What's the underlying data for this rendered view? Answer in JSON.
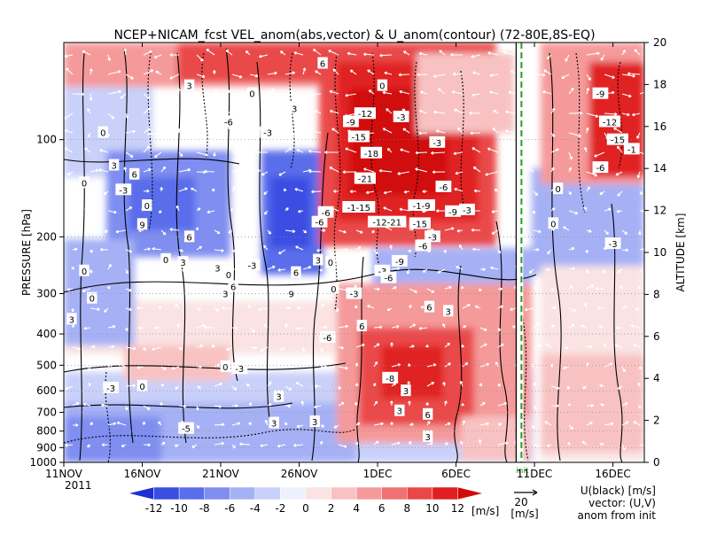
{
  "chart_data": {
    "type": "heatmap",
    "title": "NCEP+NICAM_fcst VEL_anom(abs,vector) & U_anom(contour)    (72-80E,8S-EQ)",
    "xlabel": "",
    "ylabel": "PRESSURE [hPa]",
    "y2label": "ALTITUDE [km]",
    "x_ticks": [
      "11NOV",
      "16NOV",
      "21NOV",
      "26NOV",
      "1DEC",
      "6DEC",
      "11DEC",
      "16DEC"
    ],
    "x_year": "2011",
    "x_range": [
      "2011-11-11",
      "2011-12-18"
    ],
    "init_label": "init",
    "init_date": "2011-12-10",
    "y_ticks": [
      100,
      200,
      300,
      400,
      500,
      600,
      700,
      800,
      900,
      1000
    ],
    "y_range": [
      1000,
      50
    ],
    "y_scale": "log",
    "y2_ticks": [
      0,
      2,
      4,
      6,
      8,
      10,
      12,
      14,
      16,
      18,
      20
    ],
    "y2_range": [
      0,
      20
    ],
    "colorbar": {
      "levels": [
        -12,
        -10,
        -8,
        -6,
        -4,
        -2,
        0,
        2,
        4,
        6,
        8,
        10,
        12
      ],
      "tick_labels": [
        "-12",
        "-10",
        "-8",
        "-6",
        "-4",
        "-2",
        "0",
        "2",
        "4",
        "6",
        "8",
        "10",
        "12"
      ],
      "unit": "[m/s]",
      "colors": [
        "#1e2fd8",
        "#3a4ee2",
        "#5a6dea",
        "#7f8ef0",
        "#a6b1f5",
        "#c9d0f9",
        "#eef0fc",
        "#fbe3e3",
        "#f8c2c2",
        "#f59a9a",
        "#f07272",
        "#ea4848",
        "#e02020",
        "#d10a0a"
      ]
    },
    "vector_reference": {
      "value": "20",
      "unit": "[m/s]"
    },
    "legend_lines": [
      "U(black) [m/s]",
      "vector: (U,V)",
      "anom from init"
    ],
    "contour_labels": [
      {
        "date": "2011-11-13.5",
        "hPa": 95,
        "text": "0"
      },
      {
        "date": "2011-11-19",
        "hPa": 68,
        "text": "3"
      },
      {
        "date": "2011-11-21.5",
        "hPa": 88,
        "text": "-6"
      },
      {
        "date": "2011-11-23",
        "hPa": 72,
        "text": "0"
      },
      {
        "date": "2011-11-24",
        "hPa": 95,
        "text": "-3"
      },
      {
        "date": "2011-11-25.7",
        "hPa": 80,
        "text": "3"
      },
      {
        "date": "2011-11-27.5",
        "hPa": 58,
        "text": "6"
      },
      {
        "date": "2011-11-29.3",
        "hPa": 88,
        "text": "-9"
      },
      {
        "date": "2011-11-29.8",
        "hPa": 98,
        "text": "-15"
      },
      {
        "date": "2011-11-30.2",
        "hPa": 83,
        "text": "-12"
      },
      {
        "date": "2011-11-30.6",
        "hPa": 110,
        "text": "-18"
      },
      {
        "date": "2011-11-30.2",
        "hPa": 132,
        "text": "-21"
      },
      {
        "date": "2011-12-01.3",
        "hPa": 68,
        "text": "0"
      },
      {
        "date": "2011-12-02.5",
        "hPa": 85,
        "text": "-3"
      },
      {
        "date": "2011-12-04.8",
        "hPa": 102,
        "text": "-3"
      },
      {
        "date": "2011-11-29.8",
        "hPa": 162,
        "text": "-1-15"
      },
      {
        "date": "2011-11-27.7",
        "hPa": 168,
        "text": "-6"
      },
      {
        "date": "2011-11-27.3",
        "hPa": 180,
        "text": "-6"
      },
      {
        "date": "2011-12-01.6",
        "hPa": 180,
        "text": "-12-21"
      },
      {
        "date": "2011-12-03.8",
        "hPa": 160,
        "text": "-1-9"
      },
      {
        "date": "2011-12-03.7",
        "hPa": 182,
        "text": "-15"
      },
      {
        "date": "2011-12-05.8",
        "hPa": 167,
        "text": "-9"
      },
      {
        "date": "2011-12-06.7",
        "hPa": 165,
        "text": "-3"
      },
      {
        "date": "2011-12-05.2",
        "hPa": 140,
        "text": "-6"
      },
      {
        "date": "2011-12-04.5",
        "hPa": 200,
        "text": "-3"
      },
      {
        "date": "2011-12-03.9",
        "hPa": 213,
        "text": "-6"
      },
      {
        "date": "2011-12-02.4",
        "hPa": 238,
        "text": "-9"
      },
      {
        "date": "2011-12-01.3",
        "hPa": 255,
        "text": "-3"
      },
      {
        "date": "2011-12-01.7",
        "hPa": 268,
        "text": "-6"
      },
      {
        "date": "2011-11-16",
        "hPa": 183,
        "text": "9"
      },
      {
        "date": "2011-11-14.8",
        "hPa": 143,
        "text": "-3"
      },
      {
        "date": "2011-11-15.5",
        "hPa": 128,
        "text": "6"
      },
      {
        "date": "2011-11-14.2",
        "hPa": 120,
        "text": "3"
      },
      {
        "date": "2011-11-12.3",
        "hPa": 136,
        "text": "0"
      },
      {
        "date": "2011-11-16.3",
        "hPa": 160,
        "text": "0"
      },
      {
        "date": "2011-11-17.5",
        "hPa": 235,
        "text": "0"
      },
      {
        "date": "2011-11-18.6",
        "hPa": 240,
        "text": "3"
      },
      {
        "date": "2011-11-19",
        "hPa": 200,
        "text": "6"
      },
      {
        "date": "2011-11-20.8",
        "hPa": 250,
        "text": "3"
      },
      {
        "date": "2011-11-21.5",
        "hPa": 262,
        "text": "0"
      },
      {
        "date": "2011-11-23",
        "hPa": 245,
        "text": "-3"
      },
      {
        "date": "2011-11-21.8",
        "hPa": 285,
        "text": "6"
      },
      {
        "date": "2011-11-21.3",
        "hPa": 300,
        "text": "3"
      },
      {
        "date": "2011-11-25.8",
        "hPa": 258,
        "text": "6"
      },
      {
        "date": "2011-11-25.5",
        "hPa": 300,
        "text": "9"
      },
      {
        "date": "2011-11-12.3",
        "hPa": 255,
        "text": "0"
      },
      {
        "date": "2011-11-12.8",
        "hPa": 310,
        "text": "0"
      },
      {
        "date": "2011-11-11.5",
        "hPa": 360,
        "text": "3"
      },
      {
        "date": "2011-11-27.2",
        "hPa": 236,
        "text": "3"
      },
      {
        "date": "2011-11-28",
        "hPa": 240,
        "text": "0"
      },
      {
        "date": "2011-11-28.2",
        "hPa": 290,
        "text": "0"
      },
      {
        "date": "2011-11-29.5",
        "hPa": 300,
        "text": "-3"
      },
      {
        "date": "2011-12-04.3",
        "hPa": 330,
        "text": "6"
      },
      {
        "date": "2011-12-05.5",
        "hPa": 340,
        "text": "3"
      },
      {
        "date": "2011-11-30",
        "hPa": 378,
        "text": "6"
      },
      {
        "date": "2011-11-27.8",
        "hPa": 410,
        "text": "-6"
      },
      {
        "date": "2011-11-21.3",
        "hPa": 505,
        "text": "0"
      },
      {
        "date": "2011-11-22.2",
        "hPa": 512,
        "text": "-3"
      },
      {
        "date": "2011-11-16",
        "hPa": 580,
        "text": "0"
      },
      {
        "date": "2011-11-14",
        "hPa": 588,
        "text": "-3"
      },
      {
        "date": "2011-11-24.7",
        "hPa": 625,
        "text": "3"
      },
      {
        "date": "2011-12-01.8",
        "hPa": 548,
        "text": "-8"
      },
      {
        "date": "2011-12-02.8",
        "hPa": 600,
        "text": "3"
      },
      {
        "date": "2011-12-04.2",
        "hPa": 710,
        "text": "6"
      },
      {
        "date": "2011-12-02.4",
        "hPa": 692,
        "text": "3"
      },
      {
        "date": "2011-11-24.4",
        "hPa": 755,
        "text": "3"
      },
      {
        "date": "2011-11-27",
        "hPa": 748,
        "text": "3"
      },
      {
        "date": "2011-11-18.8",
        "hPa": 785,
        "text": "-5"
      },
      {
        "date": "2011-12-04.2",
        "hPa": 832,
        "text": "3"
      },
      {
        "date": "2011-12-15.2",
        "hPa": 72,
        "text": "-9"
      },
      {
        "date": "2011-12-15.8",
        "hPa": 88,
        "text": "-12"
      },
      {
        "date": "2011-12-16.3",
        "hPa": 100,
        "text": "-15"
      },
      {
        "date": "2011-12-17.2",
        "hPa": 107,
        "text": "-1"
      },
      {
        "date": "2011-12-15.2",
        "hPa": 122,
        "text": "-6"
      },
      {
        "date": "2011-12-16",
        "hPa": 210,
        "text": "-3"
      },
      {
        "date": "2011-12-12.5",
        "hPa": 142,
        "text": "0"
      },
      {
        "date": "2011-12-12.2",
        "hPa": 182,
        "text": "0"
      }
    ]
  }
}
